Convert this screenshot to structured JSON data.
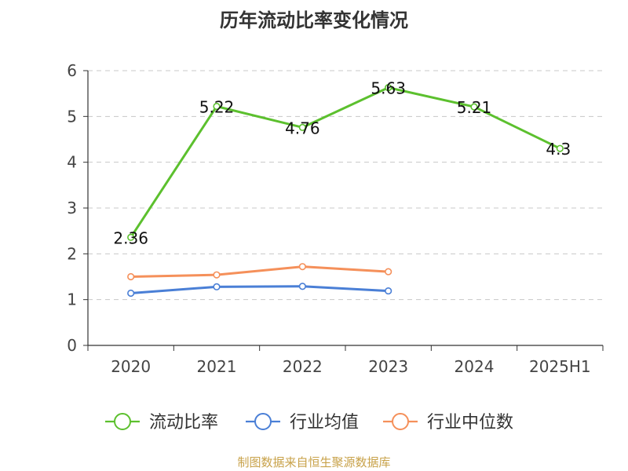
{
  "chart_data": {
    "type": "line",
    "title": "历年流动比率变化情况",
    "categories": [
      "2020",
      "2021",
      "2022",
      "2023",
      "2024",
      "2025H1"
    ],
    "ylim": [
      0,
      6
    ],
    "yticks": [
      "0",
      "1",
      "2",
      "3",
      "4",
      "5",
      "6"
    ],
    "grid": "horizontal dashed",
    "legend_position": "bottom",
    "series": [
      {
        "name": "流动比率",
        "color": "#5cc02e",
        "values": [
          2.36,
          5.22,
          4.76,
          5.63,
          5.21,
          4.3
        ],
        "labels": [
          "2.36",
          "5.22",
          "4.76",
          "5.63",
          "5.21",
          "4.3"
        ]
      },
      {
        "name": "行业均值",
        "color": "#4a7fd6",
        "values": [
          1.14,
          1.28,
          1.29,
          1.19,
          null,
          null
        ]
      },
      {
        "name": "行业中位数",
        "color": "#f5905a",
        "values": [
          1.5,
          1.54,
          1.72,
          1.61,
          null,
          null
        ]
      }
    ]
  },
  "footer": {
    "source": "制图数据来自恒生聚源数据库"
  }
}
